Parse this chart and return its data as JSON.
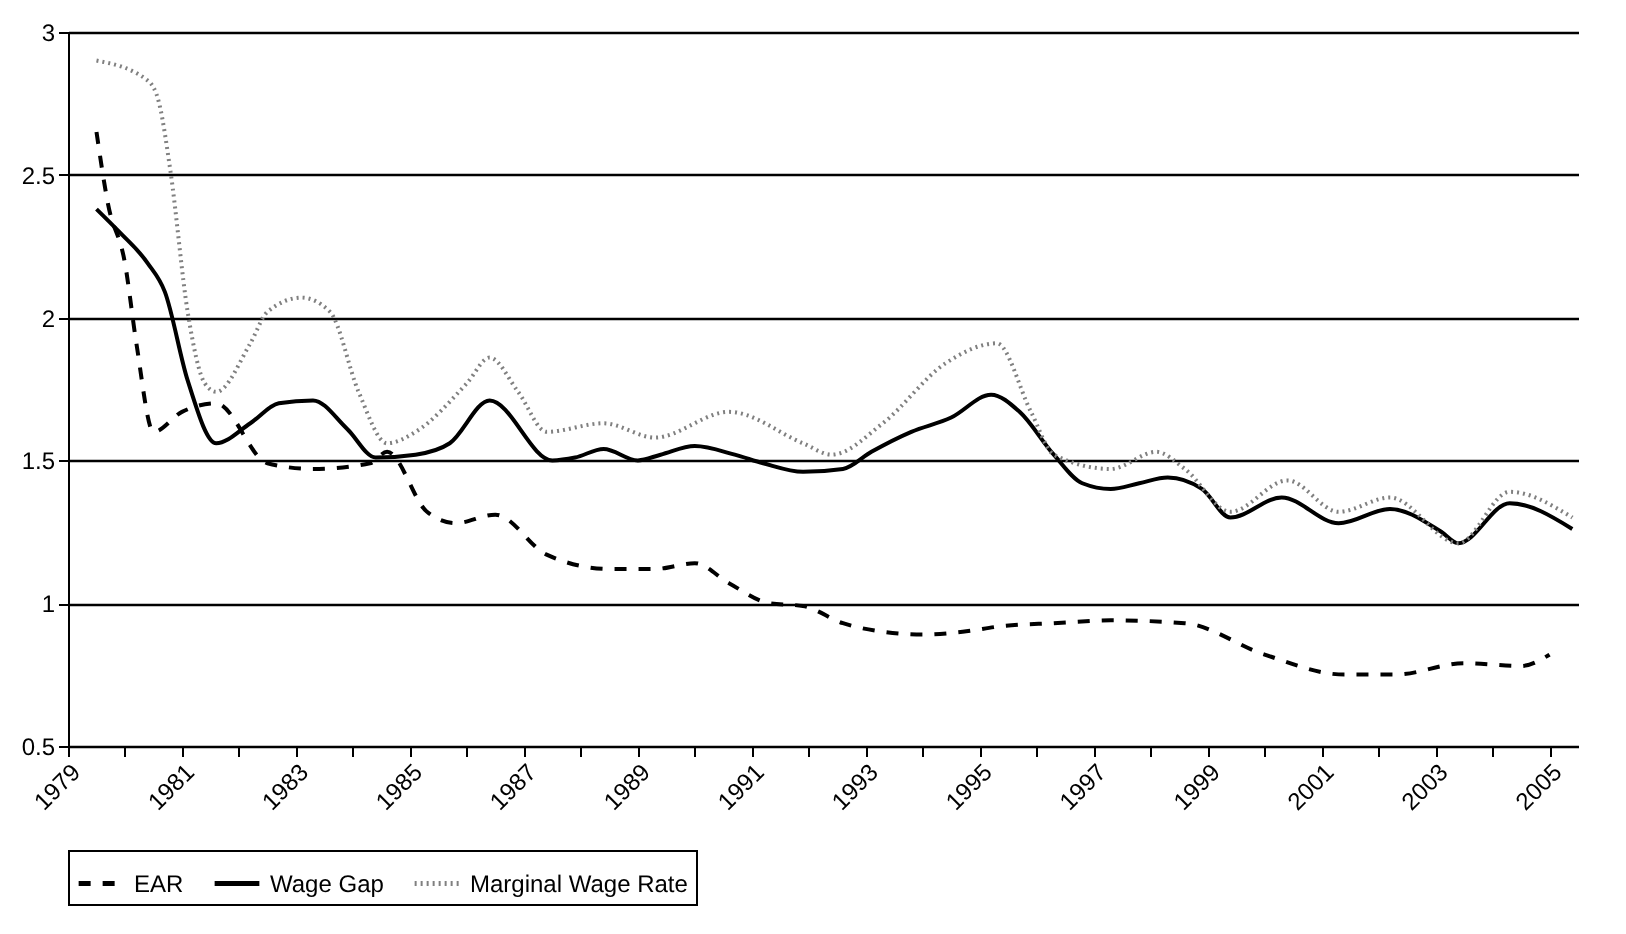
{
  "chart_data": {
    "type": "line",
    "ylim": [
      0.5,
      3
    ],
    "yticks": [
      0.5,
      1,
      1.5,
      2,
      2.5,
      3
    ],
    "xlim": [
      1979,
      2005.5
    ],
    "xticks": [
      1979,
      {
        "value": 1980,
        "label": null
      },
      1981,
      {
        "value": 1982,
        "label": null
      },
      1983,
      {
        "value": 1984,
        "label": null
      },
      1985,
      {
        "value": 1986,
        "label": null
      },
      1987,
      {
        "value": 1988,
        "label": null
      },
      1989,
      {
        "value": 1990,
        "label": null
      },
      1991,
      {
        "value": 1992,
        "label": null
      },
      1993,
      {
        "value": 1994,
        "label": null
      },
      1995,
      {
        "value": 1996,
        "label": null
      },
      1997,
      {
        "value": 1998,
        "label": null
      },
      1999,
      {
        "value": 2000,
        "label": null
      },
      2001,
      {
        "value": 2002,
        "label": null
      },
      2003,
      {
        "value": 2004,
        "label": null
      },
      2005
    ],
    "grid": "y",
    "legend": "bottom",
    "marker": "none",
    "series": [
      {
        "name": "EAR",
        "color": "#000000",
        "line_style": "dashed",
        "x": [
          1979.5,
          1979.7,
          1980.0,
          1980.2,
          1980.5,
          1981.0,
          1981.6,
          1982.5,
          1983.3,
          1984.3,
          1984.6,
          1985.3,
          1985.8,
          1986.5,
          1987.4,
          1988.5,
          1989.3,
          1990.0,
          1990.6,
          1991.3,
          1991.9,
          1992.6,
          1993.3,
          1994.0,
          1994.7,
          1995.4,
          1996.3,
          1997.3,
          1998.6,
          2000.0,
          2001.4,
          2002.3,
          2003.5,
          2004.5,
          2005.0
        ],
        "values": [
          2.65,
          2.4,
          2.19,
          1.91,
          1.6,
          1.67,
          1.7,
          1.49,
          1.47,
          1.49,
          1.53,
          1.32,
          1.28,
          1.31,
          1.17,
          1.12,
          1.12,
          1.14,
          1.07,
          1.0,
          0.99,
          0.93,
          0.9,
          0.89,
          0.9,
          0.92,
          0.93,
          0.94,
          0.93,
          0.82,
          0.75,
          0.75,
          0.79,
          0.78,
          0.82
        ]
      },
      {
        "name": "Wage Gap",
        "color": "#000000",
        "line_style": "solid",
        "x": [
          1979.5,
          1979.9,
          1980.4,
          1980.7,
          1981.1,
          1981.6,
          1982.2,
          1982.7,
          1983.3,
          1983.9,
          1984.4,
          1985.1,
          1985.7,
          1986.4,
          1987.5,
          1987.9,
          1988.4,
          1989.0,
          1989.4,
          1990.0,
          1990.7,
          1991.2,
          1991.9,
          1992.6,
          1993.1,
          1993.8,
          1994.5,
          1995.2,
          1995.7,
          1996.3,
          1996.8,
          1997.3,
          1997.8,
          1998.3,
          1998.9,
          1999.4,
          2000.3,
          2001.3,
          2002.2,
          2003.1,
          2003.4,
          2004.3,
          2005.4
        ],
        "values": [
          2.38,
          2.3,
          2.19,
          2.09,
          1.78,
          1.56,
          1.63,
          1.7,
          1.71,
          1.61,
          1.51,
          1.52,
          1.56,
          1.71,
          1.5,
          1.51,
          1.54,
          1.5,
          1.52,
          1.55,
          1.52,
          1.49,
          1.46,
          1.47,
          1.53,
          1.6,
          1.65,
          1.73,
          1.67,
          1.52,
          1.42,
          1.4,
          1.42,
          1.44,
          1.4,
          1.3,
          1.37,
          1.28,
          1.33,
          1.25,
          1.21,
          1.35,
          1.26
        ]
      },
      {
        "name": "Marginal Wage Rate",
        "color": "#808080",
        "line_style": "dotted",
        "x": [
          1979.5,
          1980.4,
          1980.6,
          1980.8,
          1981.1,
          1981.4,
          1981.6,
          1982.2,
          1982.5,
          1983.1,
          1983.6,
          1984.1,
          1984.6,
          1985.1,
          1986.0,
          1986.4,
          1986.9,
          1987.4,
          1988.4,
          1989.3,
          1990.6,
          1991.9,
          1992.4,
          1993.3,
          1994.4,
          1995.3,
          1995.9,
          1996.3,
          1997.3,
          1998.1,
          1998.6,
          1999.4,
          2000.4,
          2001.3,
          2002.2,
          2003.4,
          2004.3,
          2005.4
        ],
        "values": [
          2.9,
          2.83,
          2.75,
          2.51,
          2.02,
          1.77,
          1.74,
          1.91,
          2.02,
          2.07,
          2.02,
          1.74,
          1.56,
          1.6,
          1.77,
          1.86,
          1.74,
          1.6,
          1.63,
          1.58,
          1.67,
          1.56,
          1.52,
          1.63,
          1.84,
          1.91,
          1.67,
          1.52,
          1.47,
          1.53,
          1.47,
          1.32,
          1.43,
          1.32,
          1.37,
          1.21,
          1.39,
          1.3
        ]
      }
    ]
  }
}
